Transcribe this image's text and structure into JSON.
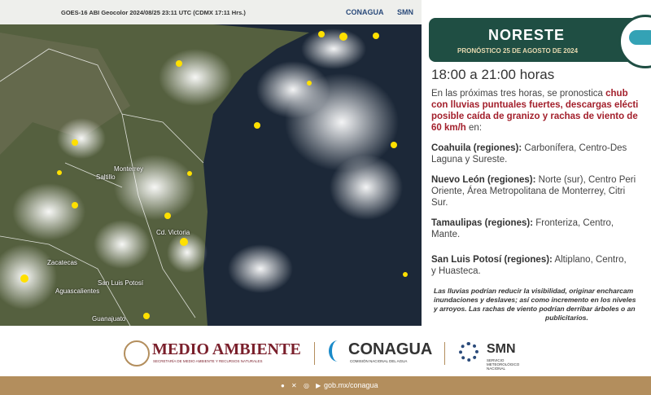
{
  "satellite": {
    "caption": "GOES-16 ABI Geocolor 2024/08/25 23:11 UTC (CDMX  17:11 Hrs.)",
    "logos": [
      "CONAGUA",
      "SMN"
    ],
    "places": [
      "Monterrey",
      "Saltillo",
      "Cd. Victoria",
      "Zacatecas",
      "San Luis Potosí",
      "Aguascalientes",
      "Guanajuato"
    ]
  },
  "header": {
    "region": "NORESTE",
    "date": "PRONÓSTICO 25 DE AGOSTO DE 2024"
  },
  "period": "18:00 a 21:00 horas",
  "intro": {
    "lead": "En las próximas tres horas, se pronostica",
    "highlights": [
      "chub",
      "con lluvias puntuales fuertes, descargas elécti",
      "posible caída de granizo y rachas de viento de",
      "60 km/h"
    ],
    "tail": "en:"
  },
  "regions": [
    {
      "name": "Coahuila (regiones):",
      "lines": [
        "Carbonífera, Centro-Des",
        "Laguna y Sureste."
      ]
    },
    {
      "name": "Nuevo León (regiones):",
      "lines": [
        "Norte (sur), Centro Peri",
        "Oriente, Área Metropolitana de Monterrey, Citri",
        "Sur."
      ]
    },
    {
      "name": "Tamaulipas (regiones):",
      "lines": [
        "Fronteriza, Centro,",
        "Mante."
      ]
    },
    {
      "name": "San Luis Potosí (regiones):",
      "lines": [
        "Altiplano, Centro,",
        "y Huasteca."
      ]
    }
  ],
  "note": [
    "Las lluvias podrían reducir la visibilidad, originar encharcam",
    "inundaciones y deslaves; así como incremento en los niveles",
    "y arroyos. Las rachas de viento podrían derribar árboles o an",
    "publicitarios."
  ],
  "footer": {
    "semarnat": "MEDIO AMBIENTE",
    "semarnat_sub": "SECRETARÍA DE MEDIO AMBIENTE Y RECURSOS NATURALES",
    "conagua": "CONAGUA",
    "conagua_sub": "COMISIÓN NACIONAL DEL AGUA",
    "smn": "SMN",
    "smn_sub": "SERVICIO METEOROLÓGICO NACIONAL",
    "url": "gob.mx/conagua"
  }
}
